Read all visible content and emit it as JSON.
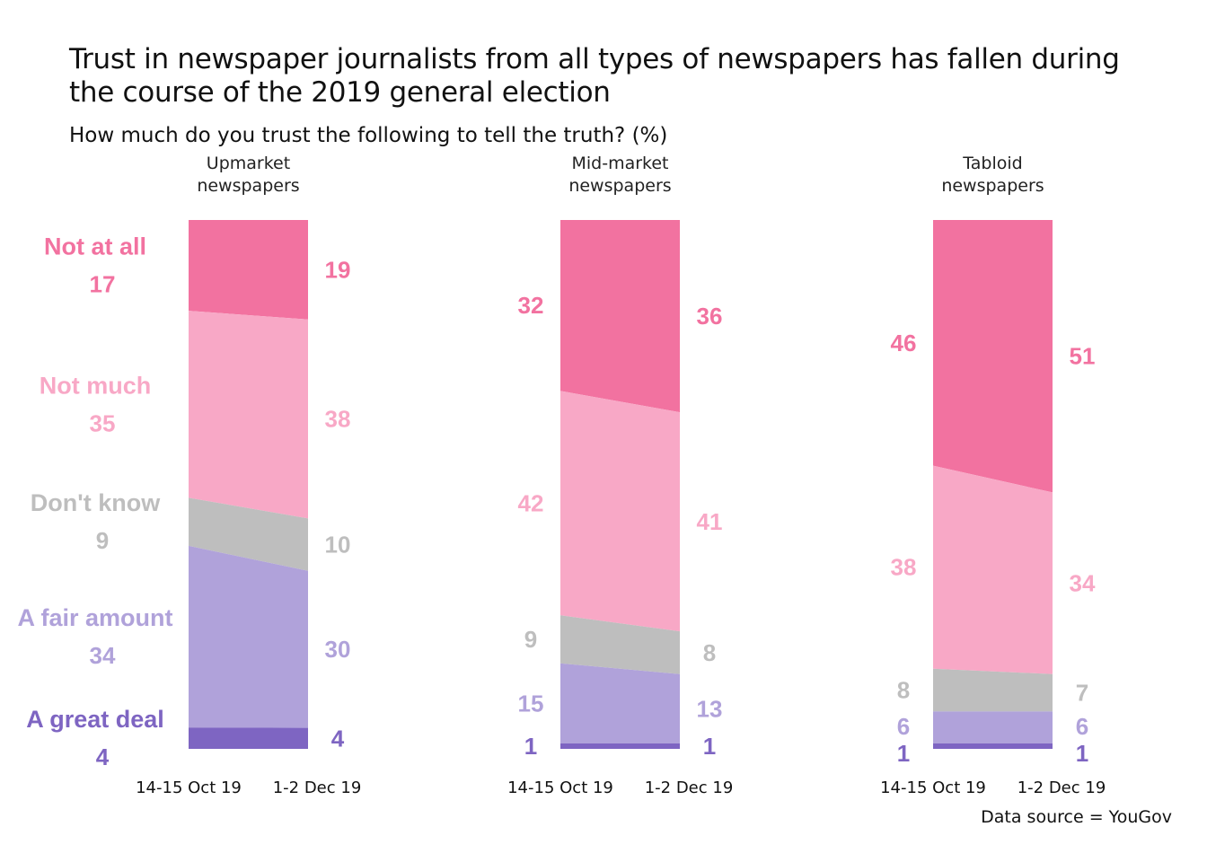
{
  "chart_data": {
    "type": "area",
    "subtype": "100% stacked slopes, small multiples",
    "title": "Trust in newspaper journalists from all types of newspapers has fallen during the course of the 2019 general election",
    "title_lines": [
      "Trust in newspaper journalists from all types of newspapers has fallen during",
      "the course of the 2019 general election"
    ],
    "subtitle": "How much do you trust the following to tell the truth? (%)",
    "source": "Data source = YouGov",
    "x": [
      "14-15 Oct 19",
      "1-2 Dec 19"
    ],
    "ylim": [
      0,
      100
    ],
    "categories": [
      "Not at all",
      "Not much",
      "Don't know",
      "A fair amount",
      "A great deal"
    ],
    "colors": {
      "Not at all": "#f272a0",
      "Not much": "#f8a8c6",
      "Don't know": "#bebebe",
      "A fair amount": "#b0a2da",
      "A great deal": "#7e65c2"
    },
    "panels": [
      {
        "name": "Upmarket newspapers",
        "title_lines": [
          "Upmarket",
          "newspapers"
        ],
        "series": [
          {
            "name": "Not at all",
            "values": [
              17,
              19
            ]
          },
          {
            "name": "Not much",
            "values": [
              35,
              38
            ]
          },
          {
            "name": "Don't know",
            "values": [
              9,
              10
            ]
          },
          {
            "name": "A fair amount",
            "values": [
              34,
              30
            ]
          },
          {
            "name": "A great deal",
            "values": [
              4,
              4
            ]
          }
        ]
      },
      {
        "name": "Mid-market newspapers",
        "title_lines": [
          "Mid-market",
          "newspapers"
        ],
        "series": [
          {
            "name": "Not at all",
            "values": [
              32,
              36
            ]
          },
          {
            "name": "Not much",
            "values": [
              42,
              41
            ]
          },
          {
            "name": "Don't know",
            "values": [
              9,
              8
            ]
          },
          {
            "name": "A fair amount",
            "values": [
              15,
              13
            ]
          },
          {
            "name": "A great deal",
            "values": [
              1,
              1
            ]
          }
        ]
      },
      {
        "name": "Tabloid newspapers",
        "title_lines": [
          "Tabloid",
          "newspapers"
        ],
        "series": [
          {
            "name": "Not at all",
            "values": [
              46,
              51
            ]
          },
          {
            "name": "Not much",
            "values": [
              38,
              34
            ]
          },
          {
            "name": "Don't know",
            "values": [
              8,
              7
            ]
          },
          {
            "name": "A fair amount",
            "values": [
              6,
              6
            ]
          },
          {
            "name": "A great deal",
            "values": [
              1,
              1
            ]
          }
        ]
      }
    ],
    "legend": "left, inline category labels beside first panel",
    "grid": false
  }
}
